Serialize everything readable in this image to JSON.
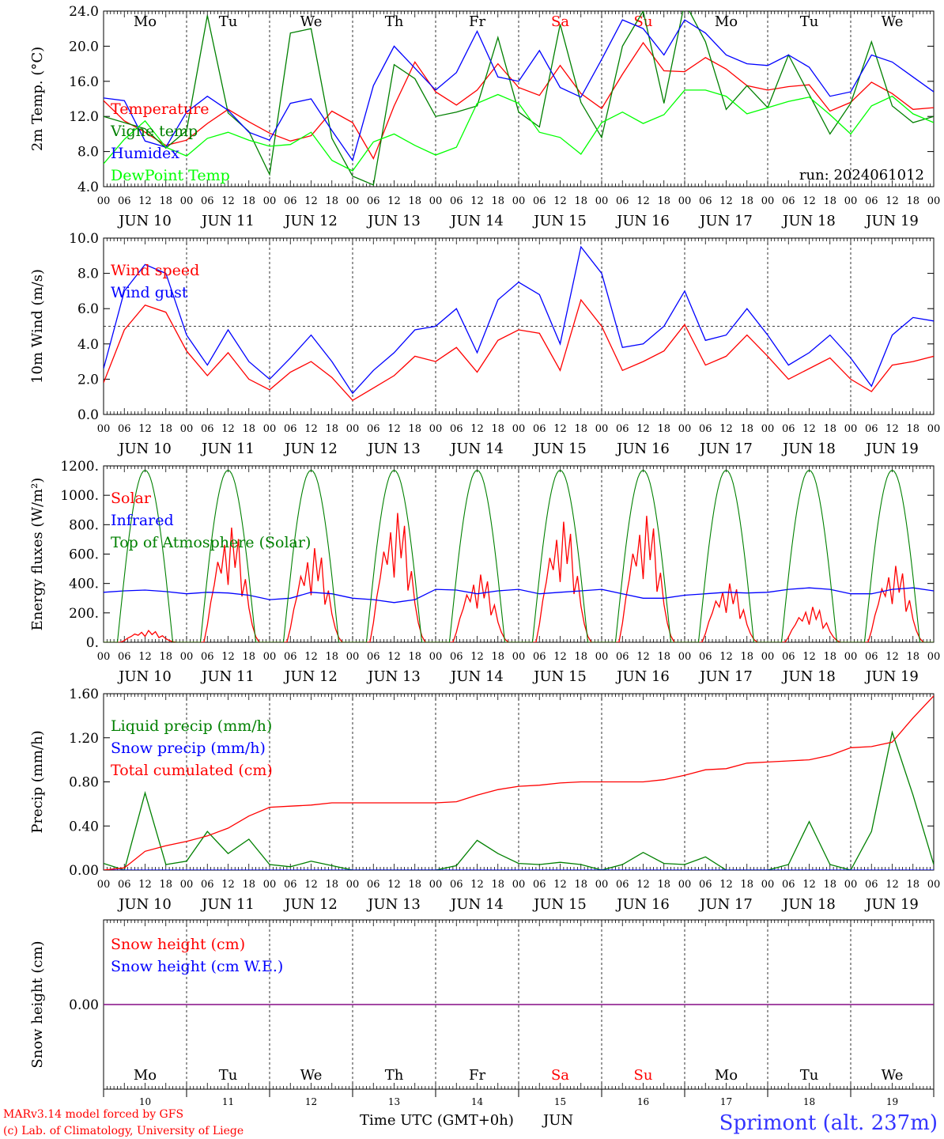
{
  "colors": {
    "red": "#ff0000",
    "blue": "#0000ff",
    "green": "#008000",
    "lightgreen": "#00ff00",
    "purple": "#800080",
    "axis": "#000000"
  },
  "common": {
    "hour_ticks": [
      "00",
      "06",
      "12",
      "18"
    ],
    "final_tick": "00",
    "dates": [
      "JUN 10",
      "JUN 11",
      "JUN 12",
      "JUN 13",
      "JUN 14",
      "JUN 15",
      "JUN 16",
      "JUN 17",
      "JUN 18",
      "JUN 19"
    ],
    "days": [
      {
        "label": "Mo",
        "weekend": false
      },
      {
        "label": "Tu",
        "weekend": false
      },
      {
        "label": "We",
        "weekend": false
      },
      {
        "label": "Th",
        "weekend": false
      },
      {
        "label": "Fr",
        "weekend": false
      },
      {
        "label": "Sa",
        "weekend": true
      },
      {
        "label": "Su",
        "weekend": true
      },
      {
        "label": "Mo",
        "weekend": false
      },
      {
        "label": "Tu",
        "weekend": false
      },
      {
        "label": "We",
        "weekend": false
      }
    ],
    "day_numbers": [
      "10",
      "11",
      "12",
      "13",
      "14",
      "15",
      "16",
      "17",
      "18",
      "19"
    ],
    "xlabel": "Time UTC (GMT+0h)",
    "month": "JUN",
    "footer_left": [
      "MARv3.14 model forced by GFS",
      "(c) Lab. of Climatology, University of Liege"
    ],
    "station": "Sprimont (alt. 237m)"
  },
  "chart_data": [
    {
      "type": "line",
      "id": "temp",
      "ylabel": "2m Temp. (°C)",
      "ylim": [
        4,
        24
      ],
      "yticks": [
        "4.0",
        "8.0",
        "12.0",
        "16.0",
        "20.0",
        "24.0"
      ],
      "ytick_values": [
        4,
        8,
        12,
        16,
        20,
        24
      ],
      "note": "run: 2024061012",
      "x_unit": "hours since JUN 10 00 UTC",
      "x_step_h": 6,
      "series": [
        {
          "name": "Temperature",
          "color": "red",
          "values": [
            13.8,
            11.5,
            10.2,
            8.7,
            9.3,
            11.2,
            12.8,
            11.4,
            10.1,
            9.2,
            9.8,
            12.6,
            11.3,
            7.2,
            13.2,
            18.2,
            14.8,
            13.3,
            15.0,
            18.0,
            15.3,
            14.4,
            17.8,
            14.6,
            12.9,
            16.8,
            20.4,
            17.2,
            17.1,
            18.7,
            17.4,
            15.5,
            15.0,
            15.4,
            15.6,
            12.6,
            13.6,
            15.9,
            14.6,
            12.8,
            13.0
          ]
        },
        {
          "name": "Vigne temp",
          "color": "green",
          "values": [
            12.0,
            11.3,
            10.6,
            8.4,
            10.4,
            23.5,
            12.4,
            10.3,
            5.4,
            21.5,
            22.0,
            9.5,
            5.2,
            4.2,
            17.9,
            16.3,
            12.0,
            12.5,
            13.2,
            21.0,
            12.5,
            10.8,
            22.5,
            13.6,
            9.6,
            20.0,
            24.0,
            13.5,
            25.0,
            20.5,
            12.8,
            15.5,
            13.0,
            19.0,
            14.5,
            10.0,
            13.5,
            20.5,
            13.2,
            11.3,
            12.0
          ]
        },
        {
          "name": "Humidex",
          "color": "blue",
          "values": [
            14.1,
            13.8,
            9.2,
            8.5,
            12.5,
            14.3,
            12.7,
            10.2,
            9.3,
            13.5,
            14.0,
            10.4,
            7.0,
            15.5,
            20.0,
            17.5,
            15.0,
            17.0,
            21.7,
            16.5,
            16.0,
            19.5,
            15.3,
            14.2,
            18.5,
            23.0,
            22.0,
            19.0,
            23.0,
            21.5,
            19.0,
            18.0,
            17.8,
            19.0,
            17.6,
            14.3,
            14.8,
            19.0,
            18.2,
            16.5,
            14.8
          ]
        },
        {
          "name": "DewPoint Temp",
          "color": "lightgreen",
          "values": [
            6.6,
            9.4,
            11.5,
            8.5,
            7.5,
            9.5,
            10.2,
            9.3,
            8.6,
            8.8,
            10.2,
            7.0,
            5.8,
            9.1,
            10.0,
            8.7,
            7.6,
            8.5,
            13.5,
            14.5,
            13.5,
            10.2,
            9.6,
            7.7,
            11.3,
            12.5,
            11.2,
            12.2,
            15.0,
            15.0,
            14.3,
            12.3,
            13.0,
            13.7,
            14.2,
            12.2,
            10.0,
            13.2,
            14.3,
            12.3,
            11.3
          ]
        }
      ]
    },
    {
      "type": "line",
      "id": "wind",
      "ylabel": "10m Wind (m/s)",
      "ylim": [
        0,
        10
      ],
      "yticks": [
        "0.0",
        "2.0",
        "4.0",
        "6.0",
        "8.0",
        "10.0"
      ],
      "ytick_values": [
        0,
        2,
        4,
        6,
        8,
        10
      ],
      "reference_line": 5,
      "x_unit": "hours since JUN 10 00 UTC",
      "x_step_h": 6,
      "series": [
        {
          "name": "Wind speed",
          "color": "red",
          "values": [
            1.8,
            4.8,
            6.2,
            5.8,
            3.6,
            2.2,
            3.5,
            2.0,
            1.4,
            2.4,
            3.0,
            2.1,
            0.8,
            1.5,
            2.2,
            3.3,
            3.0,
            3.8,
            2.4,
            4.2,
            4.8,
            4.6,
            2.5,
            6.5,
            5.0,
            2.5,
            3.0,
            3.6,
            5.1,
            2.8,
            3.3,
            4.5,
            3.3,
            2.0,
            2.6,
            3.2,
            2.0,
            1.3,
            2.8,
            3.0,
            3.3
          ]
        },
        {
          "name": "Wind gust",
          "color": "blue",
          "values": [
            2.6,
            7.0,
            8.5,
            8.0,
            4.5,
            2.8,
            4.8,
            3.0,
            2.0,
            3.2,
            4.5,
            3.0,
            1.2,
            2.5,
            3.5,
            4.8,
            5.0,
            6.0,
            3.5,
            6.5,
            7.5,
            6.8,
            4.0,
            9.5,
            8.0,
            3.8,
            4.0,
            5.0,
            7.0,
            4.2,
            4.5,
            6.0,
            4.5,
            2.8,
            3.5,
            4.5,
            3.2,
            1.6,
            4.5,
            5.5,
            5.3
          ]
        }
      ]
    },
    {
      "type": "line",
      "id": "energy",
      "ylabel": "Energy fluxes (W/m²)",
      "ylim": [
        0,
        1200
      ],
      "yticks": [
        "0.",
        "200.",
        "400.",
        "600.",
        "800.",
        "1000.",
        "1200."
      ],
      "ytick_values": [
        0,
        200,
        400,
        600,
        800,
        1000,
        1200
      ],
      "x_unit": "hours since JUN 10 00 UTC",
      "series": [
        {
          "name": "Solar",
          "color": "red",
          "day_peaks": [
            80,
            780,
            640,
            880,
            460,
            820,
            860,
            400,
            240,
            520
          ]
        },
        {
          "name": "Infrared",
          "color": "blue",
          "values": [
            340,
            350,
            355,
            345,
            330,
            340,
            335,
            320,
            290,
            300,
            340,
            330,
            300,
            290,
            270,
            290,
            360,
            355,
            330,
            350,
            360,
            330,
            340,
            350,
            360,
            330,
            300,
            300,
            320,
            330,
            340,
            335,
            340,
            360,
            370,
            360,
            330,
            330,
            360,
            370,
            350
          ]
        },
        {
          "name": "Top of Atmosphere (Solar)",
          "color": "green",
          "daily_max": 1170,
          "sunrise_h": 4,
          "sunset_h": 20
        }
      ]
    },
    {
      "type": "line",
      "id": "precip",
      "ylabel": "Precip (mm/h)",
      "ylim": [
        0,
        1.6
      ],
      "yticks": [
        "0.00",
        "0.40",
        "0.80",
        "1.20",
        "1.60"
      ],
      "ytick_values": [
        0,
        0.4,
        0.8,
        1.2,
        1.6
      ],
      "x_unit": "hours since JUN 10 00 UTC",
      "x_step_h": 6,
      "series": [
        {
          "name": "Liquid precip (mm/h)",
          "color": "green",
          "values": [
            0.06,
            0.0,
            0.7,
            0.05,
            0.08,
            0.35,
            0.15,
            0.28,
            0.05,
            0.03,
            0.08,
            0.04,
            0.0,
            0.0,
            0.0,
            0.0,
            0.0,
            0.04,
            0.27,
            0.15,
            0.06,
            0.05,
            0.07,
            0.05,
            0.0,
            0.05,
            0.16,
            0.06,
            0.05,
            0.12,
            0.0,
            0.0,
            0.0,
            0.05,
            0.44,
            0.05,
            0.0,
            0.35,
            1.25,
            0.68,
            0.05
          ]
        },
        {
          "name": "Snow precip (mm/h)",
          "color": "blue",
          "values": [
            0,
            0,
            0,
            0,
            0,
            0,
            0,
            0,
            0,
            0,
            0,
            0,
            0,
            0,
            0,
            0,
            0,
            0,
            0,
            0,
            0,
            0,
            0,
            0,
            0,
            0,
            0,
            0,
            0,
            0,
            0,
            0,
            0,
            0,
            0,
            0,
            0,
            0,
            0,
            0,
            0
          ]
        },
        {
          "name": "Total cumulated (cm)",
          "color": "red",
          "values": [
            0.0,
            0.02,
            0.17,
            0.22,
            0.26,
            0.31,
            0.38,
            0.49,
            0.57,
            0.58,
            0.59,
            0.61,
            0.61,
            0.61,
            0.61,
            0.61,
            0.61,
            0.62,
            0.68,
            0.73,
            0.76,
            0.77,
            0.79,
            0.8,
            0.8,
            0.8,
            0.8,
            0.82,
            0.86,
            0.91,
            0.92,
            0.97,
            0.98,
            0.99,
            1.0,
            1.04,
            1.11,
            1.12,
            1.16,
            1.38,
            1.58
          ]
        }
      ]
    },
    {
      "type": "line",
      "id": "snow",
      "ylabel": "Snow height (cm)",
      "ylim": [
        -1,
        1
      ],
      "yticks": [
        "0.00"
      ],
      "ytick_values": [
        0
      ],
      "x_unit": "hours since JUN 10 00 UTC",
      "x_step_h": 240,
      "series": [
        {
          "name": "Snow height (cm)",
          "color": "red",
          "values": [
            0,
            0
          ]
        },
        {
          "name": "Snow height (cm W.E.)",
          "color": "blue",
          "values": [
            0,
            0
          ]
        }
      ]
    }
  ]
}
